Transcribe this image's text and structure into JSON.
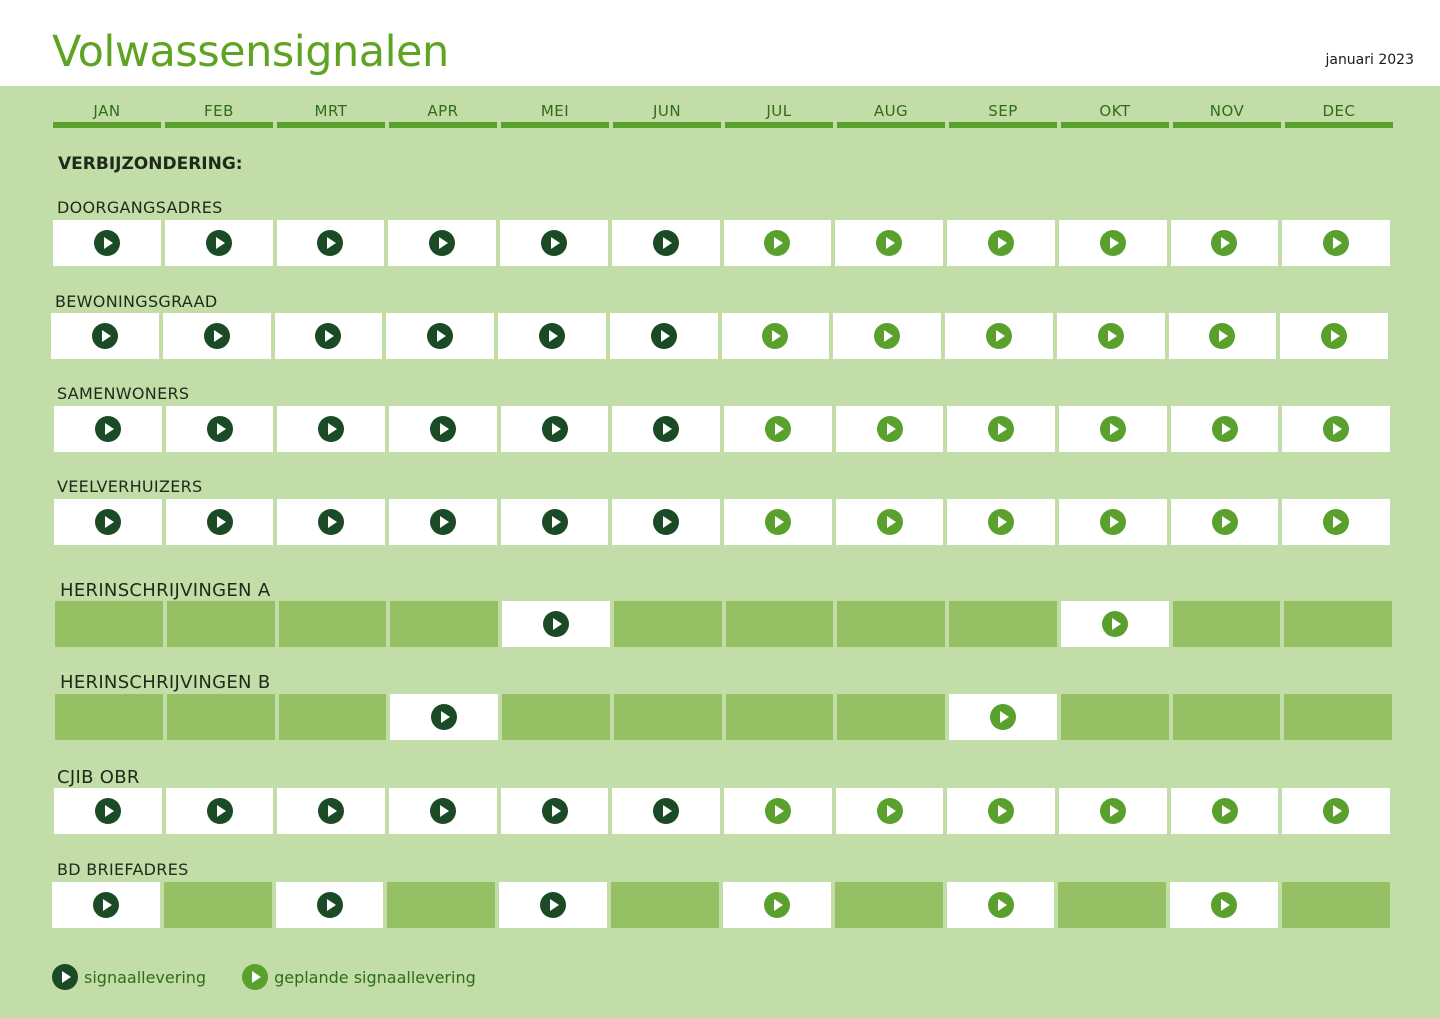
{
  "header": {
    "title": "Volwassensignalen",
    "date": "januari 2023"
  },
  "months": [
    "JAN",
    "FEB",
    "MRT",
    "APR",
    "MEI",
    "JUN",
    "JUL",
    "AUG",
    "SEP",
    "OKT",
    "NOV",
    "DEC"
  ],
  "section_title": "VERBIJZONDERING:",
  "rows": [
    {
      "label": "DOORGANGSADRES",
      "cells": [
        "done",
        "done",
        "done",
        "done",
        "done",
        "done",
        "planned",
        "planned",
        "planned",
        "planned",
        "planned",
        "planned"
      ]
    },
    {
      "label": "BEWONINGSGRAAD",
      "cells": [
        "done",
        "done",
        "done",
        "done",
        "done",
        "done",
        "planned",
        "planned",
        "planned",
        "planned",
        "planned",
        "planned"
      ]
    },
    {
      "label": "SAMENWONERS",
      "cells": [
        "done",
        "done",
        "done",
        "done",
        "done",
        "done",
        "planned",
        "planned",
        "planned",
        "planned",
        "planned",
        "planned"
      ]
    },
    {
      "label": "VEELVERHUIZERS",
      "cells": [
        "done",
        "done",
        "done",
        "done",
        "done",
        "done",
        "planned",
        "planned",
        "planned",
        "planned",
        "planned",
        "planned"
      ]
    },
    {
      "label": "HERINSCHRIJVINGEN A",
      "cells": [
        "none",
        "none",
        "none",
        "none",
        "done",
        "none",
        "none",
        "none",
        "none",
        "planned",
        "none",
        "none"
      ]
    },
    {
      "label": "HERINSCHRIJVINGEN B",
      "cells": [
        "none",
        "none",
        "none",
        "done",
        "none",
        "none",
        "none",
        "none",
        "planned",
        "none",
        "none",
        "none"
      ]
    },
    {
      "label": "CJIB OBR",
      "cells": [
        "done",
        "done",
        "done",
        "done",
        "done",
        "done",
        "planned",
        "planned",
        "planned",
        "planned",
        "planned",
        "planned"
      ]
    },
    {
      "label": "BD BRIEFADRES",
      "cells": [
        "done",
        "none",
        "done",
        "none",
        "done",
        "none",
        "planned",
        "none",
        "planned",
        "none",
        "planned",
        "none"
      ]
    }
  ],
  "legend": {
    "done_label": "signaallevering",
    "planned_label": "geplande signaallevering"
  },
  "colors": {
    "background": "#c2dda7",
    "title_green": "#5fa323",
    "empty_cell": "#95c064",
    "done_icon": "#1b4a26",
    "planned_icon": "#5aa02c"
  }
}
